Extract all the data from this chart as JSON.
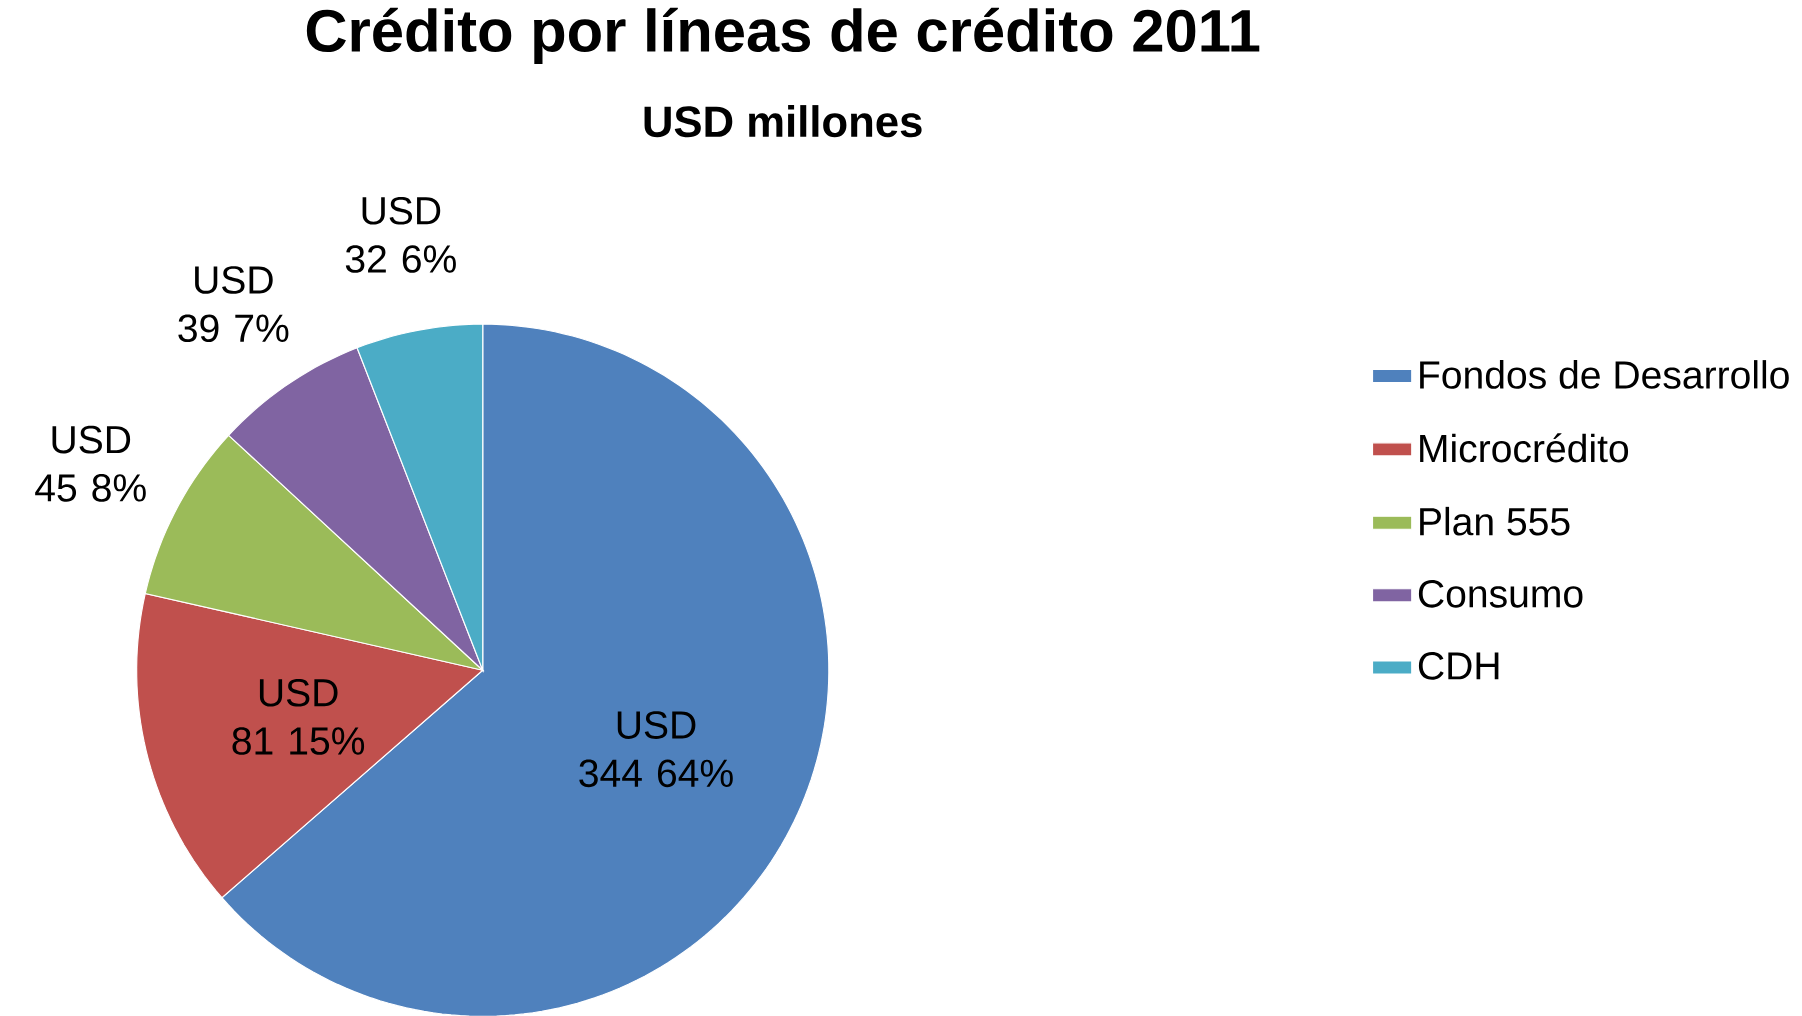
{
  "chart_data": {
    "type": "pie",
    "title": "Crédito por líneas de crédito 2011",
    "subtitle": "USD millones",
    "categories": [
      "Fondos de Desarrollo",
      "Microcrédito",
      "Plan 555",
      "Consumo",
      "CDH"
    ],
    "values": [
      344,
      81,
      45,
      39,
      32
    ],
    "colors": [
      "#4f81bd",
      "#c0504d",
      "#9bbb59",
      "#8064a2",
      "#4bacc6"
    ],
    "value_labels": [
      "USD 344 64%",
      "USD 81 15%",
      "USD 45 8%",
      "USD 39 7%",
      "USD 32 6%"
    ],
    "legend": "right"
  }
}
